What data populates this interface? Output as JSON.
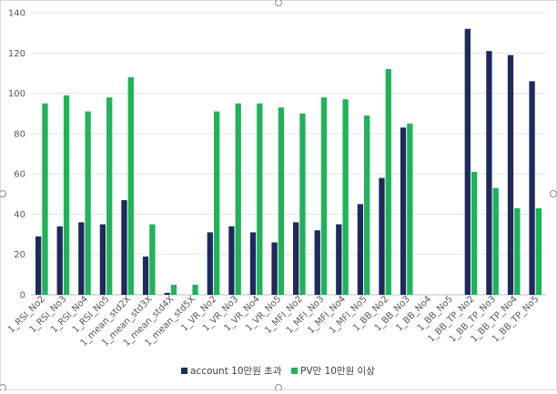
{
  "chart_data": {
    "type": "bar",
    "categories": [
      "1_RSI_No2",
      "1_RSI_No3",
      "1_RSI_No4",
      "1_RSI_No5",
      "1_mean_std2X",
      "1_mean_std3X",
      "1_mean_std4X",
      "1_mean_std5X",
      "1_VR_No2",
      "1_VR_No3",
      "1_VR_No4",
      "1_VR_No5",
      "1_MFI_No2",
      "1_MFI_No3",
      "1_MFI_No4",
      "1_MFI_No5",
      "1_BB_No2",
      "1_BB_No3",
      "1_BB_No4",
      "1_BB_No5",
      "1_BB_TP_No2",
      "1_BB_TP_No3",
      "1_BB_TP_No4",
      "1_BB_TP_No5"
    ],
    "series": [
      {
        "name": "account 10만원 초과",
        "color": "#1f2a5c",
        "values": [
          29,
          34,
          36,
          35,
          47,
          19,
          1,
          0,
          31,
          34,
          31,
          26,
          36,
          32,
          35,
          45,
          58,
          83,
          0,
          0,
          132,
          121,
          119,
          106
        ]
      },
      {
        "name": "PV만 10만원 이상",
        "color": "#1fb35a",
        "values": [
          95,
          99,
          91,
          98,
          108,
          35,
          5,
          5,
          91,
          95,
          95,
          93,
          90,
          98,
          97,
          89,
          112,
          85,
          0,
          0,
          61,
          53,
          43,
          43
        ]
      }
    ],
    "ylim": [
      0,
      140
    ],
    "yticks": [
      0,
      20,
      40,
      60,
      80,
      100,
      120,
      140
    ],
    "grid": true,
    "legend": "bottom",
    "title": "",
    "xlabel": "",
    "ylabel": ""
  }
}
